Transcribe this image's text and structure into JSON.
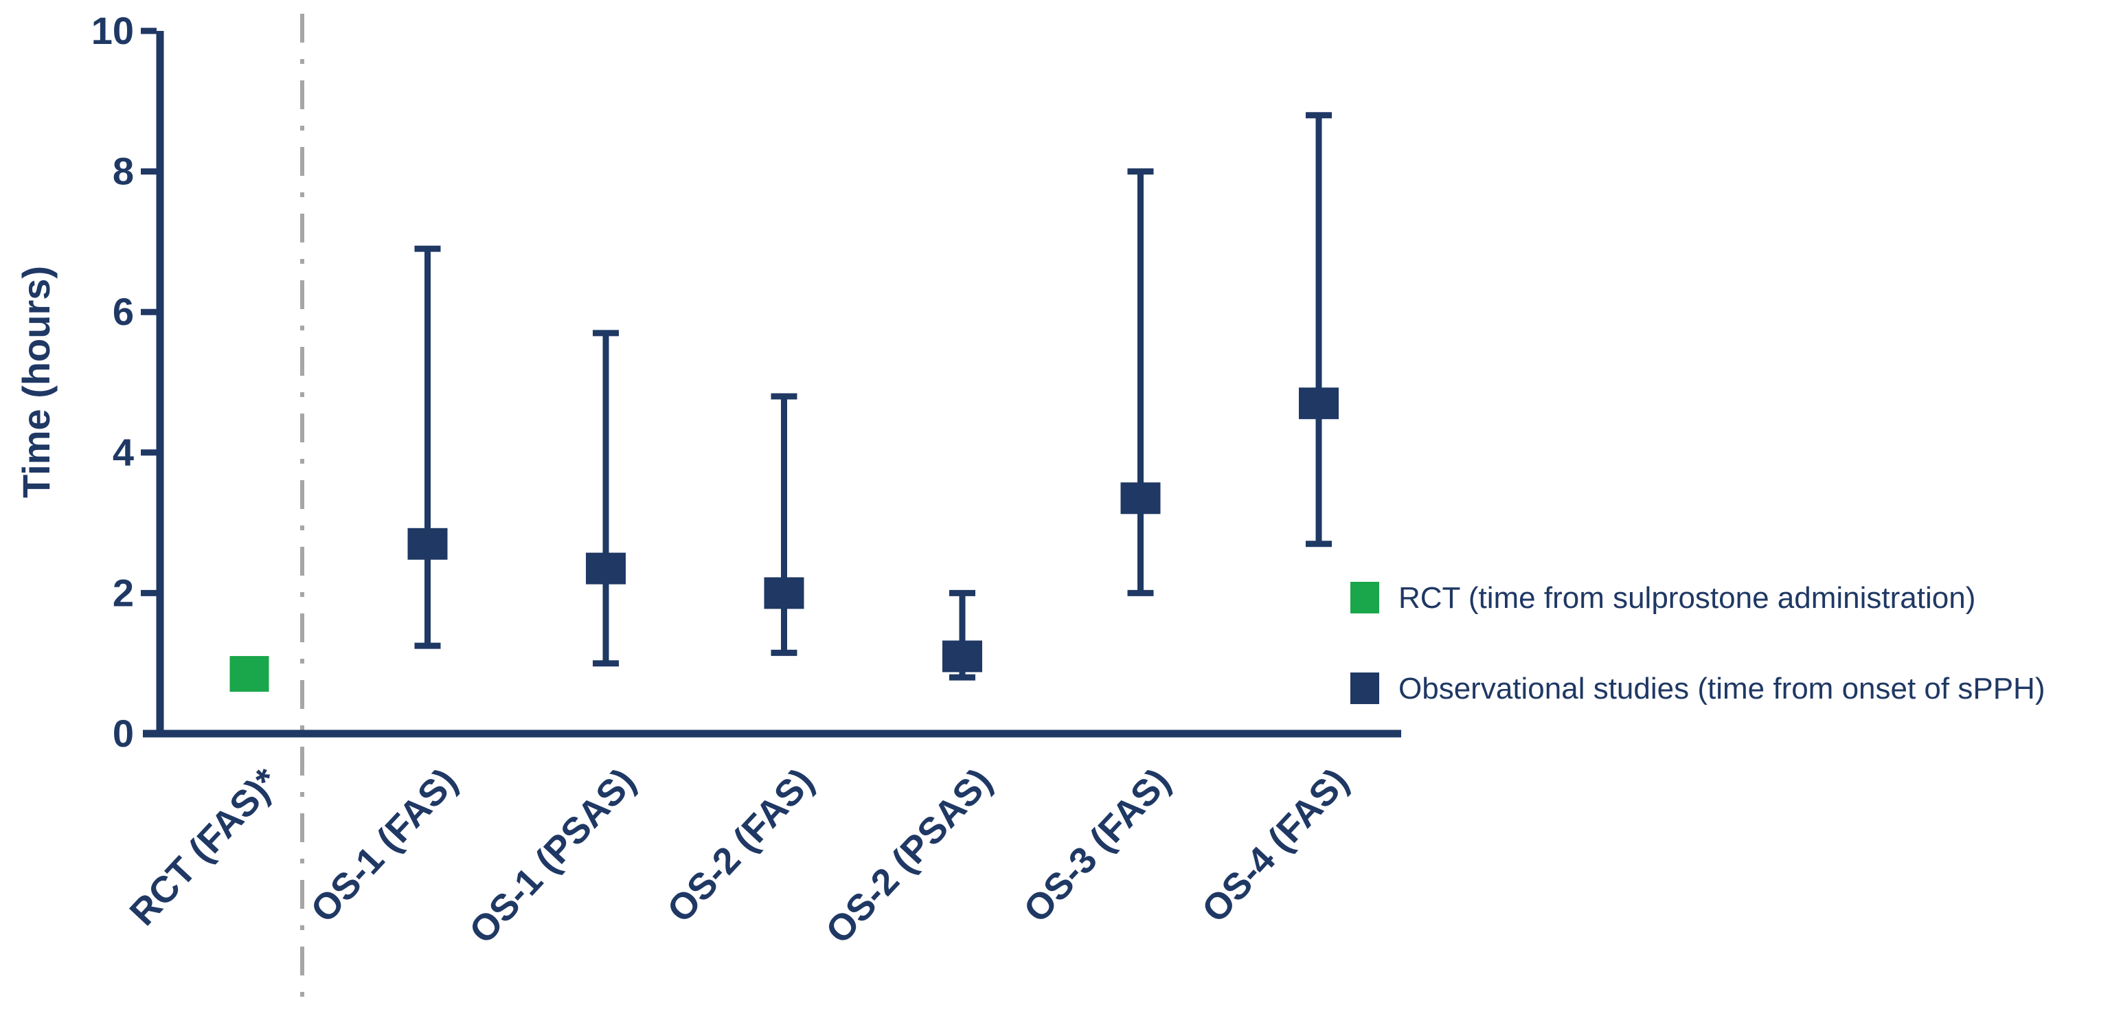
{
  "y_axis": {
    "label": "Time (hours)",
    "ticks": [
      0,
      2,
      4,
      6,
      8,
      10
    ],
    "tick_labels": [
      "0",
      "2",
      "4",
      "6",
      "8",
      "10"
    ],
    "range": [
      0,
      10
    ]
  },
  "legend": {
    "entries": [
      {
        "label": "RCT (time from sulprostone administration)",
        "color": "#1AA64A",
        "swatch": "green-square"
      },
      {
        "label": "Observational studies (time from onset of sPPH)",
        "color": "#1F3864",
        "swatch": "navy-square"
      }
    ]
  },
  "separator": {
    "style": "dash-dot",
    "color": "#A6A6A6",
    "position": "between RCT and observational studies"
  },
  "colors": {
    "accent_green": "#1AA64A",
    "accent_navy": "#1F3864",
    "separator_gray": "#A6A6A6",
    "background": "#FFFFFF"
  },
  "chart_data": {
    "type": "scatter",
    "subtype": "forest-plot-with-error-bars",
    "title": "",
    "xlabel": "",
    "ylabel": "Time (hours)",
    "ylim": [
      0,
      10
    ],
    "yticks": [
      0,
      2,
      4,
      6,
      8,
      10
    ],
    "grid": false,
    "legend_position": "right",
    "categories": [
      "RCT (FAS)*",
      "OS-1 (FAS)",
      "OS-1 (PSAS)",
      "OS-2 (FAS)",
      "OS-2 (PSAS)",
      "OS-3 (FAS)",
      "OS-4 (FAS)"
    ],
    "series": [
      {
        "name": "RCT (time from sulprostone administration)",
        "color": "#1AA64A",
        "marker": "square",
        "points": [
          {
            "category": "RCT (FAS)*",
            "value": 0.85,
            "lower": null,
            "upper": null
          }
        ]
      },
      {
        "name": "Observational studies (time from onset of sPPH)",
        "color": "#1F3864",
        "marker": "square-with-error-bars",
        "points": [
          {
            "category": "OS-1 (FAS)",
            "value": 2.7,
            "lower": 1.25,
            "upper": 6.9
          },
          {
            "category": "OS-1 (PSAS)",
            "value": 2.35,
            "lower": 1.0,
            "upper": 5.7
          },
          {
            "category": "OS-2 (FAS)",
            "value": 2.0,
            "lower": 1.15,
            "upper": 4.8
          },
          {
            "category": "OS-2 (PSAS)",
            "value": 1.1,
            "lower": 0.8,
            "upper": 2.0
          },
          {
            "category": "OS-3 (FAS)",
            "value": 3.35,
            "lower": 2.0,
            "upper": 8.0
          },
          {
            "category": "OS-4 (FAS)",
            "value": 4.7,
            "lower": 2.7,
            "upper": 8.8
          }
        ]
      }
    ]
  }
}
